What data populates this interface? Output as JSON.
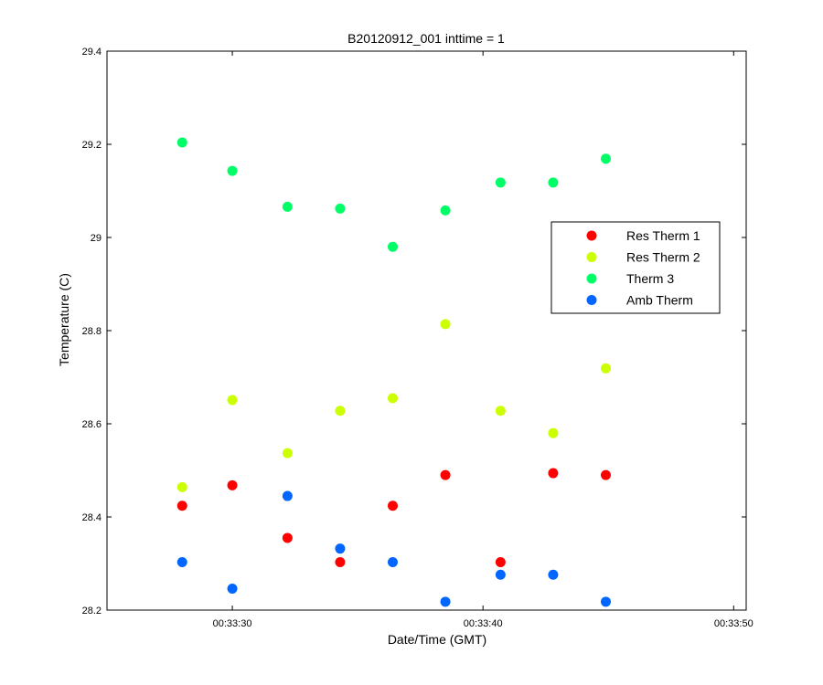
{
  "chart_data": {
    "type": "scatter",
    "title": "B20120912_001 inttime = 1",
    "xlabel": "Date/Time (GMT)",
    "ylabel": "Temperature (C)",
    "x_ticks": [
      "00:33:30",
      "00:33:40",
      "00:33:50"
    ],
    "x_tick_seconds": [
      30,
      40,
      50
    ],
    "xlim_seconds": [
      25,
      50.5
    ],
    "ylim": [
      28.2,
      29.4
    ],
    "y_ticks": [
      28.2,
      28.4,
      28.6,
      28.8,
      29,
      29.2,
      29.4
    ],
    "x_seconds": [
      28.0,
      30.0,
      32.2,
      34.3,
      36.4,
      38.5,
      40.7,
      42.8,
      44.9
    ],
    "legend_position": "right",
    "grid": false,
    "series": [
      {
        "name": "Res Therm 1",
        "color": "#ff0000",
        "values": [
          28.424,
          28.468,
          28.355,
          28.303,
          28.424,
          28.49,
          28.303,
          28.494,
          28.49
        ]
      },
      {
        "name": "Res Therm 2",
        "color": "#ccff00",
        "values": [
          28.464,
          28.651,
          28.537,
          28.628,
          28.655,
          28.814,
          28.628,
          28.58,
          28.719
        ]
      },
      {
        "name": "Therm 3",
        "color": "#00ff66",
        "values": [
          29.204,
          29.143,
          29.066,
          29.062,
          28.98,
          29.058,
          29.118,
          29.118,
          29.169
        ]
      },
      {
        "name": "Amb Therm",
        "color": "#0066ff",
        "values": [
          28.303,
          28.246,
          28.445,
          28.332,
          28.303,
          28.218,
          28.276,
          28.276,
          28.218
        ]
      }
    ]
  }
}
